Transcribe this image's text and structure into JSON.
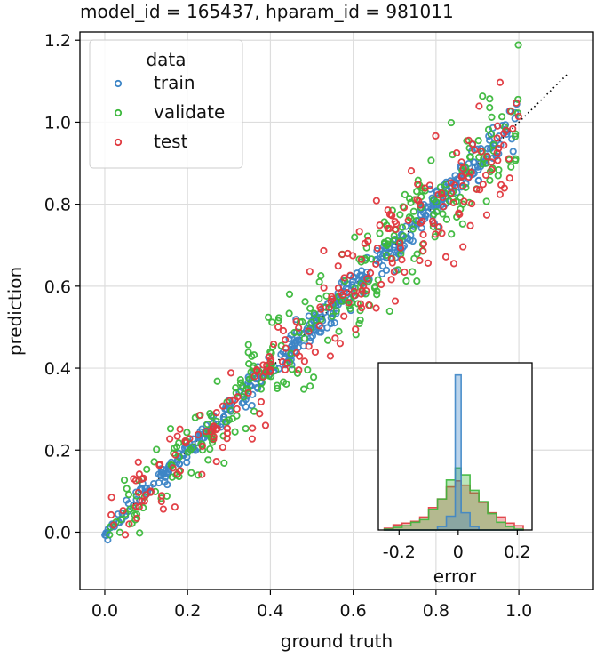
{
  "chart_data": {
    "type": "scatter",
    "title": "model_id = 165437, hparam_id = 981011",
    "xlabel": "ground truth",
    "ylabel": "prediction",
    "xlim": [
      -0.06,
      1.18
    ],
    "ylim": [
      -0.14,
      1.22
    ],
    "xticks": [
      0.0,
      0.2,
      0.4,
      0.6,
      0.8,
      1.0
    ],
    "xtick_labels": [
      "0.0",
      "0.2",
      "0.4",
      "0.6",
      "0.8",
      "1.0"
    ],
    "yticks": [
      0.0,
      0.2,
      0.4,
      0.6,
      0.8,
      1.0,
      1.2
    ],
    "ytick_labels": [
      "0.0",
      "0.2",
      "0.4",
      "0.6",
      "0.8",
      "1.0",
      "1.2"
    ],
    "grid": true,
    "reference_line": {
      "style": "dotted",
      "from": [
        0.0,
        0.0
      ],
      "to": [
        1.12,
        1.12
      ]
    },
    "legend": {
      "title": "data",
      "position": "top-left",
      "entries": [
        {
          "label": "train",
          "color": "#3d85c6"
        },
        {
          "label": "validate",
          "color": "#3cb83c"
        },
        {
          "label": "test",
          "color": "#e0383e"
        }
      ]
    },
    "series": [
      {
        "name": "train",
        "color": "#3d85c6",
        "noise_std": 0.018,
        "count": 420,
        "clamp_upper_x": 1.0
      },
      {
        "name": "validate",
        "color": "#3cb83c",
        "noise_std": 0.055,
        "count": 300,
        "clamp_upper_x": 1.0
      },
      {
        "name": "test",
        "color": "#e0383e",
        "noise_std": 0.06,
        "count": 240,
        "clamp_upper_x": 1.0
      }
    ],
    "inset": {
      "type": "histogram",
      "xlabel": "error",
      "xlim": [
        -0.27,
        0.25
      ],
      "xticks": [
        -0.2,
        0.0,
        0.2
      ],
      "xtick_labels": [
        "-0.2",
        "0",
        "0.2"
      ],
      "bin_edges": [
        -0.25,
        -0.22,
        -0.19,
        -0.16,
        -0.13,
        -0.1,
        -0.07,
        -0.04,
        -0.01,
        0.01,
        0.04,
        0.07,
        0.1,
        0.13,
        0.16,
        0.19,
        0.22
      ],
      "series": [
        {
          "name": "train",
          "color": "#3d85c6",
          "counts": [
            0,
            0,
            0,
            0,
            0,
            0,
            0.4,
            1.6,
            18,
            2.0,
            0.4,
            0,
            0,
            0,
            0,
            0
          ]
        },
        {
          "name": "validate",
          "color": "#3cb83c",
          "counts": [
            0.1,
            0.3,
            0.5,
            0.9,
            1.2,
            2.4,
            3.6,
            5.8,
            7.2,
            6.4,
            4.6,
            3.3,
            1.9,
            0.9,
            0.4,
            0.1
          ]
        },
        {
          "name": "test",
          "color": "#e0383e",
          "counts": [
            0.2,
            0.6,
            0.8,
            1.0,
            1.5,
            2.6,
            3.6,
            5.0,
            5.7,
            5.2,
            4.3,
            3.2,
            2.0,
            1.5,
            0.8,
            0.5
          ]
        }
      ]
    }
  }
}
